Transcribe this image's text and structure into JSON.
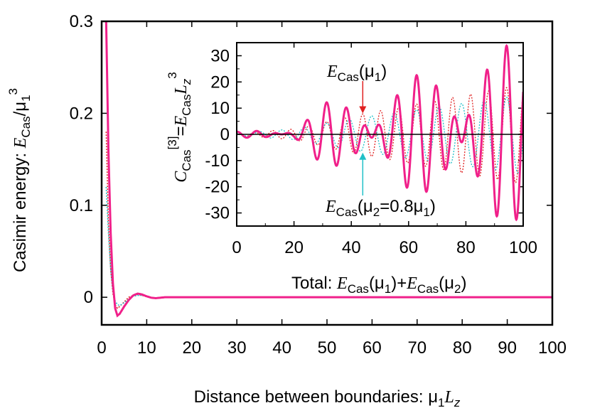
{
  "chart_data": [
    {
      "type": "line",
      "role": "main",
      "xlabel": "Distance between boundaries: μ1Lz",
      "ylabel": "Casimir energy: ECas/μ1^3",
      "xlim": [
        0,
        100
      ],
      "ylim": [
        -0.03,
        0.3
      ],
      "xticks": [
        0,
        10,
        20,
        30,
        40,
        50,
        60,
        70,
        80,
        90,
        100
      ],
      "yticks": [
        0,
        0.1,
        0.2,
        0.3
      ],
      "grid": false,
      "series": [
        {
          "name": "Total: ECas(μ1)+ECas(μ2)",
          "color": "#f0208a",
          "style": "solid",
          "x": [
            1.0,
            1.5,
            2.0,
            2.5,
            3.0,
            3.5,
            4.0,
            5.0,
            6.0,
            7.0,
            8.0,
            9.0,
            10.0,
            11.0,
            12.0,
            14.0,
            20.0,
            40.0,
            60.0,
            80.0,
            100.0
          ],
          "y": [
            0.3,
            0.16,
            0.07,
            0.015,
            -0.012,
            -0.02,
            -0.018,
            -0.01,
            -0.003,
            0.002,
            0.004,
            0.003,
            0.001,
            -0.0005,
            -0.001,
            0.0,
            0.0,
            0.0,
            0.0,
            0.0,
            0.0
          ]
        },
        {
          "name": "ECas(μ1)",
          "color": "#e02020",
          "style": "dotted",
          "x": [
            1.0,
            1.5,
            2.0,
            2.5,
            3.0,
            3.5,
            4.0,
            5.0,
            6.0,
            7.0,
            8.0,
            9.0,
            10.0,
            11.0,
            12.0,
            14.0,
            20.0,
            40.0,
            60.0,
            80.0,
            100.0
          ],
          "y": [
            0.18,
            0.08,
            0.03,
            0.004,
            -0.008,
            -0.012,
            -0.01,
            -0.005,
            0.0,
            0.002,
            0.003,
            0.002,
            0.0005,
            -0.0005,
            -0.0008,
            0.0,
            0.0,
            0.0,
            0.0,
            0.0,
            0.0
          ]
        },
        {
          "name": "ECas(μ2=0.8μ1)",
          "color": "#20c0c8",
          "style": "dotted",
          "x": [
            1.0,
            1.5,
            2.0,
            2.5,
            3.0,
            3.5,
            4.0,
            5.0,
            6.0,
            7.0,
            8.0,
            9.0,
            10.0,
            11.0,
            12.0,
            14.0,
            20.0,
            40.0,
            60.0,
            80.0,
            100.0
          ],
          "y": [
            0.12,
            0.07,
            0.03,
            0.006,
            -0.004,
            -0.008,
            -0.009,
            -0.006,
            -0.002,
            0.001,
            0.002,
            0.002,
            0.001,
            0.0,
            -0.0005,
            0.0,
            0.0,
            0.0,
            0.0,
            0.0,
            0.0
          ]
        }
      ],
      "annotations": [
        {
          "text_main": "Total: ",
          "text_e1": "E",
          "text_sub1": "Cas",
          "text_mid1": "(μ",
          "text_sub2": "1",
          "text_mid2": ")+",
          "text_e2": "E",
          "text_sub3": "Cas",
          "text_mid3": "(μ",
          "text_sub4": "2",
          "text_end": ")",
          "color": "#f0208a"
        }
      ]
    },
    {
      "type": "line",
      "role": "inset",
      "xlabel": "",
      "ylabel": "CCas[3]=ECasLz^3",
      "xlim": [
        0,
        100
      ],
      "ylim": [
        -35,
        35
      ],
      "xticks": [
        0,
        20,
        40,
        60,
        80,
        100
      ],
      "yticks": [
        -30,
        -20,
        -10,
        0,
        10,
        20,
        30
      ],
      "zero_line": true,
      "series": [
        {
          "name": "Total",
          "color": "#f0208a",
          "style": "solid",
          "envelope": [
            [
              0,
              1
            ],
            [
              20,
              3
            ],
            [
              30,
              12
            ],
            [
              50,
              15
            ],
            [
              60,
              22
            ],
            [
              70,
              24
            ],
            [
              80,
              28
            ],
            [
              90,
              33
            ],
            [
              100,
              35
            ]
          ],
          "period": 5.6,
          "beat_period": 22.7
        },
        {
          "name": "ECas(μ1)",
          "color": "#e02020",
          "style": "dotted",
          "envelope": [
            [
              0,
              0.5
            ],
            [
              20,
              2
            ],
            [
              40,
              7
            ],
            [
              60,
              11
            ],
            [
              80,
              15
            ],
            [
              100,
              19
            ]
          ],
          "period": 6.28
        },
        {
          "name": "ECas(μ2=0.8μ1)",
          "color": "#20c0c8",
          "style": "dotted",
          "envelope": [
            [
              0,
              0.5
            ],
            [
              20,
              2
            ],
            [
              40,
              6
            ],
            [
              60,
              9
            ],
            [
              80,
              12
            ],
            [
              100,
              15
            ]
          ],
          "period": 7.85
        }
      ],
      "annotations": [
        {
          "e": "E",
          "sub": "Cas",
          "text": "(μ",
          "sub2": "1",
          "end": ")",
          "color": "#e02020",
          "arrow_to": [
            44,
            8
          ]
        },
        {
          "e": "E",
          "sub": "Cas",
          "text": "(μ",
          "sub2": "2",
          "mid": "=0.8μ",
          "sub3": "1",
          "end": ")",
          "color": "#20c0c8",
          "arrow_to": [
            44,
            -7
          ]
        }
      ],
      "ylabel_parts": {
        "c": "C",
        "c_sub": "Cas",
        "c_sup": "[3]",
        "eq": "=",
        "e": "E",
        "e_sub": "Cas",
        "l": "L",
        "l_sub": "z",
        "l_sup": "3"
      }
    }
  ],
  "axis_label_parts": {
    "x_main": "Distance between boundaries: ",
    "x_mu": "μ",
    "x_mu_sub": "1",
    "x_L": "L",
    "x_L_sub": "z",
    "y_main": "Casimir energy: ",
    "y_E": "E",
    "y_E_sub": "Cas",
    "y_slash": "/μ",
    "y_mu_sub": "1",
    "y_sup": "3"
  }
}
